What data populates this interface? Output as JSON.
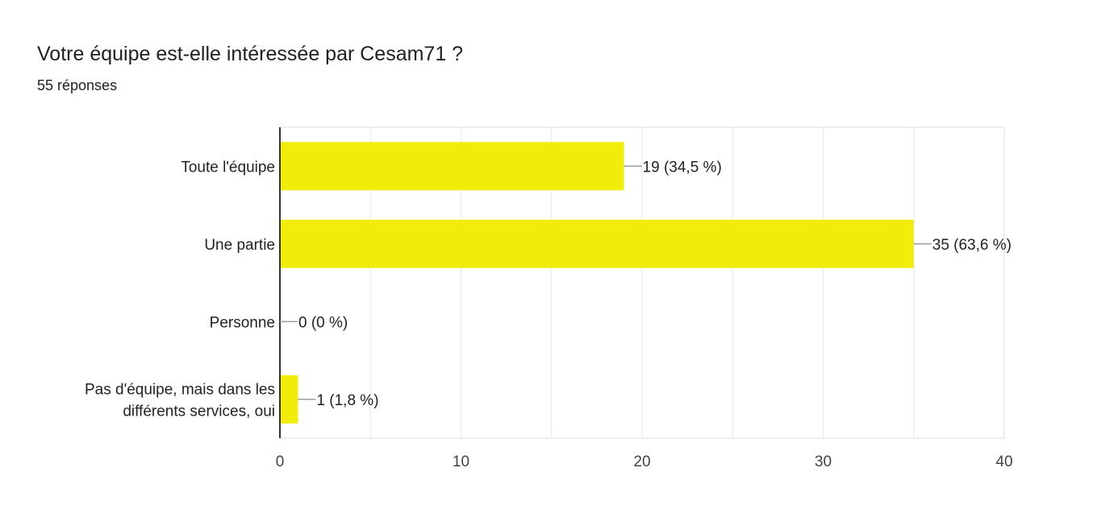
{
  "header": {
    "title": "Votre équipe est-elle intéressée par Cesam71 ?",
    "subtitle": "55 réponses"
  },
  "chart_data": {
    "type": "bar",
    "orientation": "horizontal",
    "categories": [
      [
        "Toute l'équipe"
      ],
      [
        "Une partie"
      ],
      [
        "Personne"
      ],
      [
        "Pas d'équipe, mais dans les",
        "différents services, oui"
      ]
    ],
    "values": [
      19,
      35,
      0,
      1
    ],
    "data_labels": [
      "19 (34,5 %)",
      "35 (63,6 %)",
      "0 (0 %)",
      "1 (1,8 %)"
    ],
    "xlim": [
      0,
      40
    ],
    "xticks": [
      0,
      10,
      20,
      30,
      40
    ],
    "grid": true,
    "bar_color": "#f1ec0a",
    "grid_color": "#e8e8e8",
    "axis_color": "#333333",
    "leader_color": "#9e9e9e"
  }
}
